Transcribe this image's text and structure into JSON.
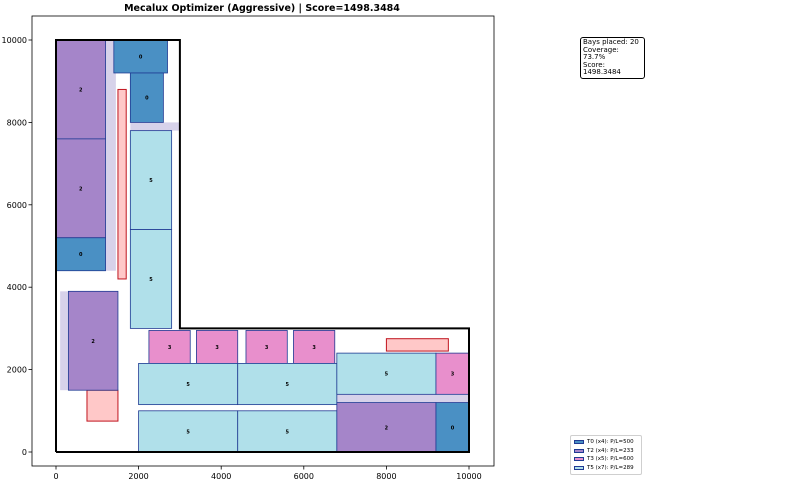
{
  "chart_data": {
    "type": "layout",
    "title": "Mecalux Optimizer (Aggressive) | Score=1498.3484",
    "xlim": [
      -1100,
      10650
    ],
    "ylim": [
      -900,
      10600
    ],
    "x_ticks": [
      0,
      2000,
      4000,
      6000,
      8000,
      10000
    ],
    "y_ticks": [
      0,
      2000,
      4000,
      6000,
      8000,
      10000
    ],
    "grid": false,
    "legend_position": "lower-right",
    "warehouse_outline": [
      [
        0,
        0
      ],
      [
        10000,
        0
      ],
      [
        10000,
        3000
      ],
      [
        3000,
        3000
      ],
      [
        3000,
        10000
      ],
      [
        0,
        10000
      ]
    ],
    "types": {
      "0": {
        "color": "#4a90c4",
        "edge": "#1f3a93"
      },
      "2": {
        "color": "#a585c9",
        "edge": "#1f3a93"
      },
      "3": {
        "color": "#e88fcc",
        "edge": "#1f3a93"
      },
      "5": {
        "color": "#b0e0ea",
        "edge": "#1f3a93"
      }
    },
    "gaps": [
      {
        "x": 1200,
        "y": 9200,
        "w": 200,
        "h": 800
      },
      {
        "x": 1200,
        "y": 4400,
        "w": 250,
        "h": 4800
      },
      {
        "x": 1800,
        "y": 7800,
        "w": 1200,
        "h": 200
      },
      {
        "x": 100,
        "y": 1500,
        "w": 200,
        "h": 2400
      },
      {
        "x": 6800,
        "y": 1200,
        "w": 3200,
        "h": 200
      }
    ],
    "obstacles": [
      {
        "x": 750,
        "y": 750,
        "w": 750,
        "h": 750
      },
      {
        "x": 1500,
        "y": 4200,
        "w": 200,
        "h": 4600
      },
      {
        "x": 8000,
        "y": 2450,
        "w": 1500,
        "h": 300
      }
    ],
    "bays": [
      {
        "type": "0",
        "x": 1400,
        "y": 9200,
        "w": 1300,
        "h": 800
      },
      {
        "type": "0",
        "x": 1800,
        "y": 8000,
        "w": 800,
        "h": 1200
      },
      {
        "type": "2",
        "x": 0,
        "y": 7600,
        "w": 1200,
        "h": 2400
      },
      {
        "type": "2",
        "x": 0,
        "y": 5200,
        "w": 1200,
        "h": 2400
      },
      {
        "type": "0",
        "x": 0,
        "y": 4400,
        "w": 1200,
        "h": 800
      },
      {
        "type": "5",
        "x": 1800,
        "y": 5400,
        "w": 1000,
        "h": 2400
      },
      {
        "type": "5",
        "x": 1800,
        "y": 3000,
        "w": 1000,
        "h": 2400
      },
      {
        "type": "2",
        "x": 300,
        "y": 1500,
        "w": 1200,
        "h": 2400
      },
      {
        "type": "3",
        "x": 2250,
        "y": 2150,
        "w": 1000,
        "h": 800
      },
      {
        "type": "3",
        "x": 3400,
        "y": 2150,
        "w": 1000,
        "h": 800
      },
      {
        "type": "3",
        "x": 4600,
        "y": 2150,
        "w": 1000,
        "h": 800
      },
      {
        "type": "3",
        "x": 5750,
        "y": 2150,
        "w": 1000,
        "h": 800
      },
      {
        "type": "5",
        "x": 2000,
        "y": 1150,
        "w": 2400,
        "h": 1000
      },
      {
        "type": "5",
        "x": 4400,
        "y": 1150,
        "w": 2400,
        "h": 1000
      },
      {
        "type": "5",
        "x": 6800,
        "y": 1400,
        "w": 2400,
        "h": 1000
      },
      {
        "type": "3",
        "x": 9200,
        "y": 1400,
        "w": 800,
        "h": 1000
      },
      {
        "type": "5",
        "x": 2000,
        "y": 0,
        "w": 2400,
        "h": 1000
      },
      {
        "type": "5",
        "x": 4400,
        "y": 0,
        "w": 2400,
        "h": 1000
      },
      {
        "type": "2",
        "x": 6800,
        "y": 0,
        "w": 2400,
        "h": 1200
      },
      {
        "type": "0",
        "x": 9200,
        "y": 0,
        "w": 800,
        "h": 1200
      }
    ],
    "info_box": [
      "Bays placed: 20",
      "Coverage: 73.7%",
      "Score: 1498.3484"
    ],
    "legend": [
      {
        "type": "0",
        "label": "T0 (x4): P/L=500"
      },
      {
        "type": "2",
        "label": "T2 (x4): P/L=233"
      },
      {
        "type": "3",
        "label": "T3 (x5): P/L=600"
      },
      {
        "type": "5",
        "label": "T5 (x7): P/L=289"
      }
    ]
  }
}
